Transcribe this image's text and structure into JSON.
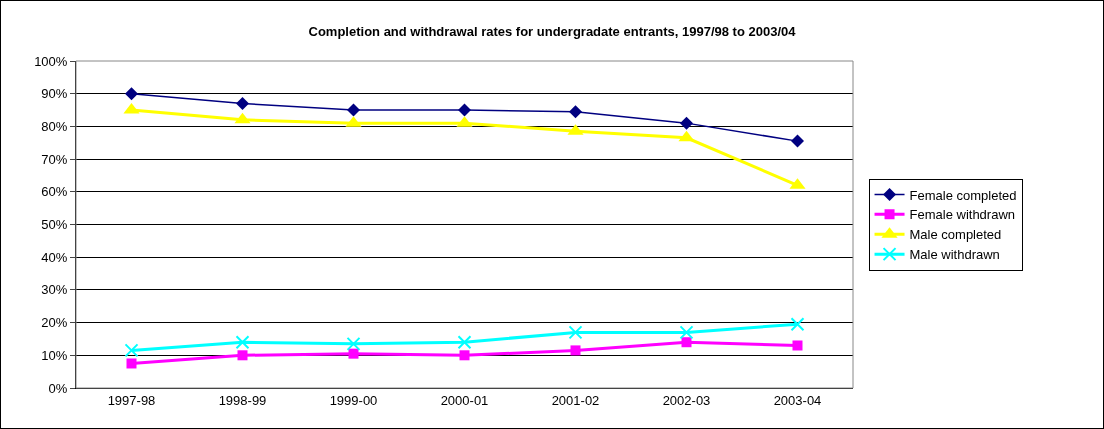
{
  "chart_data": {
    "type": "line",
    "title": "Completion and withdrawal rates for undergradate entrants, 1997/98 to 2003/04",
    "categories": [
      "1997-98",
      "1998-99",
      "1999-00",
      "2000-01",
      "2001-02",
      "2002-03",
      "2003-04"
    ],
    "series": [
      {
        "name": "Female completed",
        "color": "#000080",
        "marker": "diamond",
        "values": [
          90,
          87,
          85,
          85,
          84.5,
          81,
          75.5
        ]
      },
      {
        "name": "Female withdrawn",
        "color": "#ff00ff",
        "marker": "square",
        "values": [
          7.5,
          10,
          10.5,
          10,
          11.5,
          14,
          13
        ]
      },
      {
        "name": "Male completed",
        "color": "#ffff00",
        "marker": "triangle",
        "values": [
          85,
          82,
          81,
          81,
          78.5,
          76.5,
          62
        ]
      },
      {
        "name": "Male withdrawn",
        "color": "#00ffff",
        "marker": "cross",
        "values": [
          11.5,
          14,
          13.5,
          14,
          17,
          17,
          19.5
        ]
      }
    ],
    "ylim": [
      0,
      100
    ],
    "yticks": [
      {
        "value": 0,
        "label": "0%"
      },
      {
        "value": 10,
        "label": "10%"
      },
      {
        "value": 20,
        "label": "20%"
      },
      {
        "value": 30,
        "label": "30%"
      },
      {
        "value": 40,
        "label": "40%"
      },
      {
        "value": 50,
        "label": "50%"
      },
      {
        "value": 60,
        "label": "60%"
      },
      {
        "value": 70,
        "label": "70%"
      },
      {
        "value": 80,
        "label": "80%"
      },
      {
        "value": 90,
        "label": "90%"
      },
      {
        "value": 100,
        "label": "100%"
      }
    ],
    "grid": "y",
    "legend": "right",
    "line_style": "solid"
  }
}
